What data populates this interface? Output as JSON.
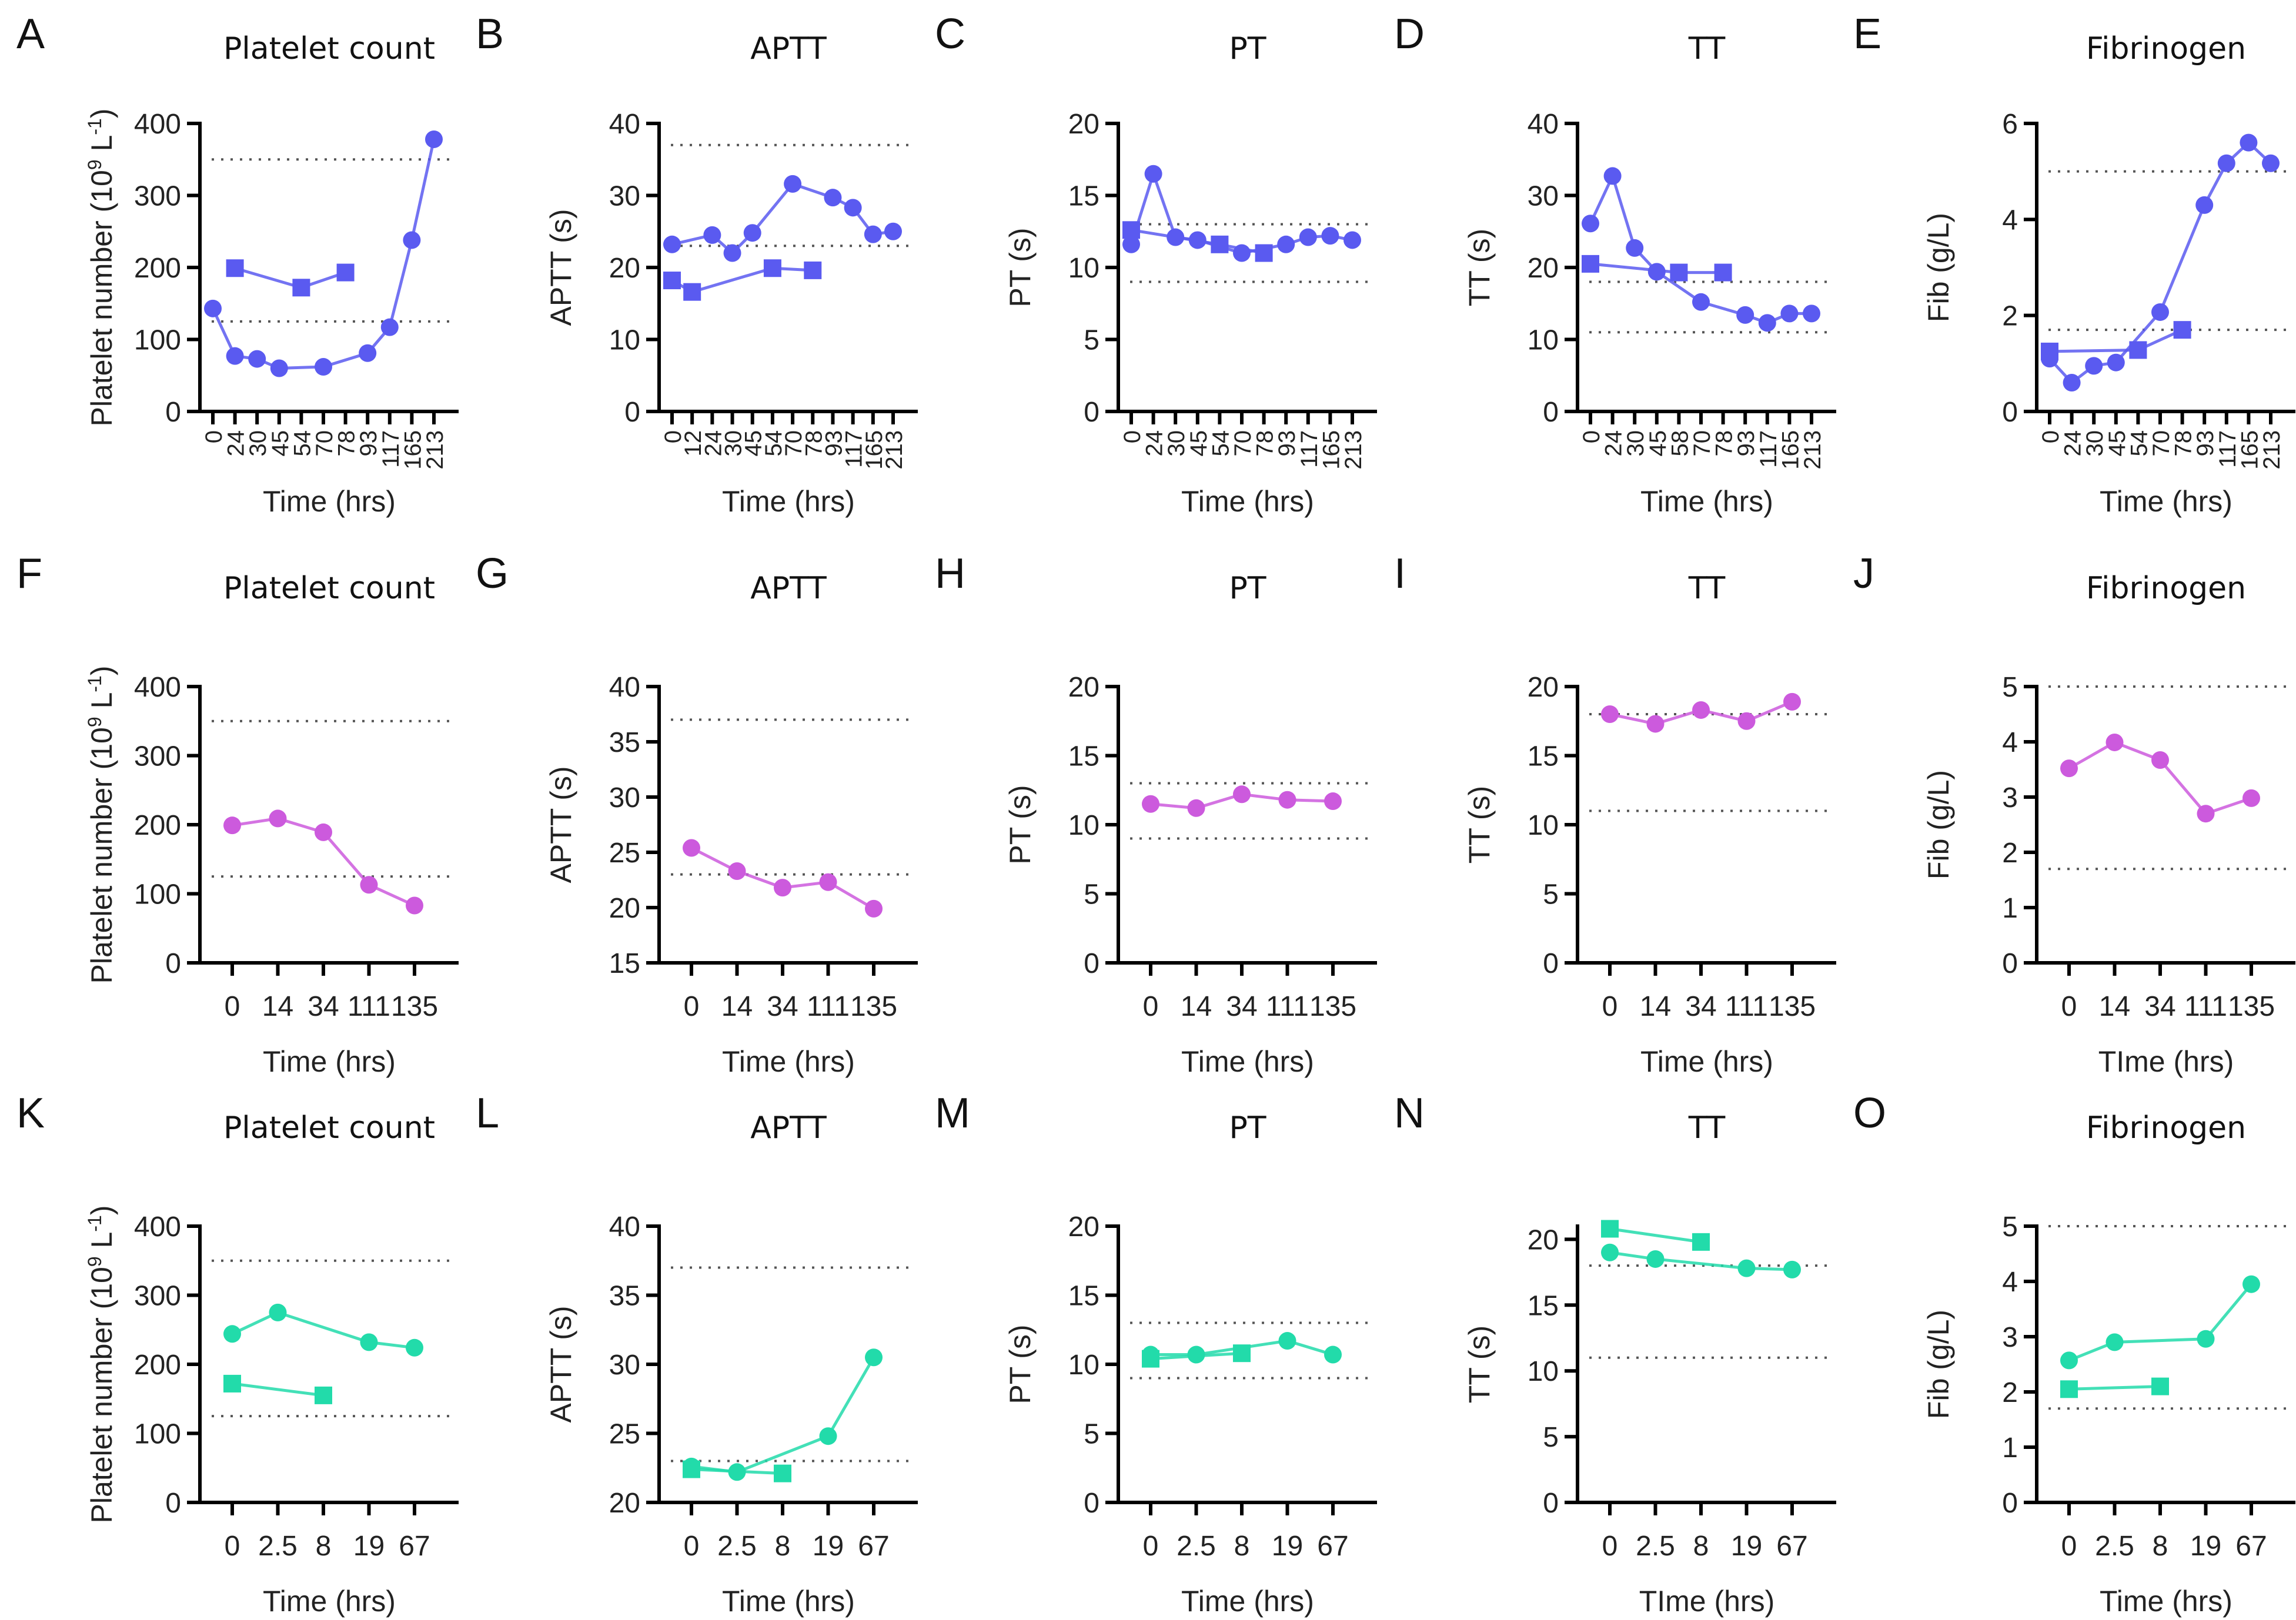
{
  "figure": {
    "colors": {
      "row1": "#5a5af0",
      "row2": "#cc5add",
      "row3": "#22dbaa",
      "axis": "#000000",
      "reference": "#555555"
    }
  },
  "chart_data": [
    {
      "panel": "A",
      "type": "line",
      "title": "Platelet count",
      "xlabel": "Time (hrs)",
      "ylabel": "Platelet number (10^9 L^-1)",
      "ylabel_parts": {
        "base": "Platelet number (10",
        "sup1": "9",
        "mid": " L",
        "sup2": "-1",
        "end": ")"
      },
      "categories": [
        "0",
        "24",
        "30",
        "45",
        "54",
        "70",
        "78",
        "93",
        "117",
        "165",
        "213"
      ],
      "xtick_rotated": true,
      "ylim": [
        0,
        400
      ],
      "yticks": [
        0,
        100,
        200,
        300,
        400
      ],
      "reference_lines": [
        125,
        350
      ],
      "series": [
        {
          "name": "circle series",
          "marker": "circle",
          "values": [
            143,
            77,
            73,
            60,
            null,
            62,
            null,
            81,
            117,
            238,
            378
          ]
        },
        {
          "name": "square series",
          "marker": "square",
          "values": [
            null,
            199,
            null,
            null,
            172,
            null,
            193,
            null,
            null,
            null,
            null
          ]
        }
      ]
    },
    {
      "panel": "B",
      "type": "line",
      "title": "APTT",
      "xlabel": "Time (hrs)",
      "ylabel": "APTT (s)",
      "categories": [
        "0",
        "12",
        "24",
        "30",
        "45",
        "54",
        "70",
        "78",
        "93",
        "117",
        "165",
        "213"
      ],
      "xtick_rotated": true,
      "ylim": [
        0,
        40
      ],
      "yticks": [
        0,
        10,
        20,
        30,
        40
      ],
      "reference_lines": [
        23,
        37
      ],
      "series": [
        {
          "name": "circle series",
          "marker": "circle",
          "values": [
            23.2,
            null,
            24.5,
            22.0,
            24.8,
            null,
            31.6,
            null,
            29.7,
            28.3,
            24.6,
            25.0
          ]
        },
        {
          "name": "square series",
          "marker": "square",
          "values": [
            18.2,
            16.6,
            null,
            null,
            null,
            19.9,
            null,
            19.6,
            null,
            null,
            null,
            null
          ]
        }
      ]
    },
    {
      "panel": "C",
      "type": "line",
      "title": "PT",
      "xlabel": "Time (hrs)",
      "ylabel": "PT (s)",
      "categories": [
        "0",
        "24",
        "30",
        "45",
        "54",
        "70",
        "78",
        "93",
        "117",
        "165",
        "213"
      ],
      "xtick_rotated": true,
      "ylim": [
        0,
        20
      ],
      "yticks": [
        0,
        5,
        10,
        15,
        20
      ],
      "reference_lines": [
        9,
        13
      ],
      "series": [
        {
          "name": "circle series",
          "marker": "circle",
          "values": [
            11.6,
            16.5,
            12.1,
            11.9,
            null,
            11.0,
            null,
            11.6,
            12.1,
            12.2,
            11.9
          ]
        },
        {
          "name": "square series",
          "marker": "square",
          "values": [
            12.6,
            null,
            null,
            null,
            11.6,
            null,
            11.0,
            null,
            null,
            null,
            null
          ]
        }
      ]
    },
    {
      "panel": "D",
      "type": "line",
      "title": "TT",
      "xlabel": "Time (hrs)",
      "ylabel": "TT (s)",
      "categories": [
        "0",
        "24",
        "30",
        "45",
        "58",
        "70",
        "78",
        "93",
        "117",
        "165",
        "213"
      ],
      "xtick_rotated": true,
      "ylim": [
        0,
        40
      ],
      "yticks": [
        0,
        10,
        20,
        30,
        40
      ],
      "reference_lines": [
        11,
        18
      ],
      "series": [
        {
          "name": "circle series",
          "marker": "circle",
          "values": [
            26.1,
            32.7,
            22.7,
            19.4,
            null,
            15.2,
            null,
            13.4,
            12.3,
            13.6,
            13.6
          ]
        },
        {
          "name": "square series",
          "marker": "square",
          "values": [
            20.5,
            null,
            null,
            null,
            19.3,
            null,
            19.3,
            null,
            null,
            null,
            null
          ]
        }
      ]
    },
    {
      "panel": "E",
      "type": "line",
      "title": "Fibrinogen",
      "xlabel": "Time (hrs)",
      "ylabel": "Fib (g/L)",
      "categories": [
        "0",
        "24",
        "30",
        "45",
        "54",
        "70",
        "78",
        "93",
        "117",
        "165",
        "213"
      ],
      "xtick_rotated": true,
      "ylim": [
        0,
        6
      ],
      "yticks": [
        0,
        2,
        4,
        6
      ],
      "reference_lines": [
        1.7,
        5.0
      ],
      "series": [
        {
          "name": "circle series",
          "marker": "circle",
          "values": [
            1.1,
            0.6,
            0.95,
            1.02,
            null,
            2.07,
            null,
            4.3,
            5.17,
            5.6,
            5.17
          ]
        },
        {
          "name": "square series",
          "marker": "square",
          "values": [
            1.25,
            null,
            null,
            null,
            1.28,
            null,
            1.7,
            null,
            null,
            null,
            null
          ]
        }
      ]
    },
    {
      "panel": "F",
      "type": "line",
      "title": "Platelet count",
      "xlabel": "Time (hrs)",
      "ylabel": "Platelet number (10^9 L^-1)",
      "ylabel_parts": {
        "base": "Platelet number (10",
        "sup1": "9",
        "mid": " L",
        "sup2": "-1",
        "end": ")"
      },
      "categories": [
        "0",
        "14",
        "34",
        "111",
        "135"
      ],
      "ylim": [
        0,
        400
      ],
      "yticks": [
        0,
        100,
        200,
        300,
        400
      ],
      "reference_lines": [
        125,
        350
      ],
      "series": [
        {
          "name": "circle series",
          "marker": "circle",
          "values": [
            199,
            209,
            189,
            113,
            83
          ]
        }
      ]
    },
    {
      "panel": "G",
      "type": "line",
      "title": "APTT",
      "xlabel": "Time (hrs)",
      "ylabel": "APTT (s)",
      "categories": [
        "0",
        "14",
        "34",
        "111",
        "135"
      ],
      "ylim": [
        15,
        40
      ],
      "yticks": [
        15,
        20,
        25,
        30,
        35,
        40
      ],
      "reference_lines": [
        23,
        37
      ],
      "series": [
        {
          "name": "circle series",
          "marker": "circle",
          "values": [
            25.4,
            23.3,
            21.8,
            22.3,
            19.9
          ]
        }
      ]
    },
    {
      "panel": "H",
      "type": "line",
      "title": "PT",
      "xlabel": "Time (hrs)",
      "ylabel": "PT (s)",
      "categories": [
        "0",
        "14",
        "34",
        "111",
        "135"
      ],
      "ylim": [
        0,
        20
      ],
      "yticks": [
        0,
        5,
        10,
        15,
        20
      ],
      "reference_lines": [
        9,
        13
      ],
      "series": [
        {
          "name": "circle series",
          "marker": "circle",
          "values": [
            11.5,
            11.2,
            12.2,
            11.8,
            11.7
          ]
        }
      ]
    },
    {
      "panel": "I",
      "type": "line",
      "title": "TT",
      "xlabel": "Time (hrs)",
      "ylabel": "TT (s)",
      "categories": [
        "0",
        "14",
        "34",
        "111",
        "135"
      ],
      "ylim": [
        0,
        20
      ],
      "yticks": [
        0,
        5,
        10,
        15,
        20
      ],
      "reference_lines": [
        11,
        18
      ],
      "series": [
        {
          "name": "circle series",
          "marker": "circle",
          "values": [
            18.0,
            17.3,
            18.3,
            17.5,
            18.9
          ]
        }
      ]
    },
    {
      "panel": "J",
      "type": "line",
      "title": "Fibrinogen",
      "xlabel": "TIme (hrs)",
      "ylabel": "Fib (g/L)",
      "categories": [
        "0",
        "14",
        "34",
        "111",
        "135"
      ],
      "ylim": [
        0,
        5
      ],
      "yticks": [
        0,
        1,
        2,
        3,
        4,
        5
      ],
      "reference_lines": [
        1.7,
        5.0
      ],
      "series": [
        {
          "name": "circle series",
          "marker": "circle",
          "values": [
            3.52,
            3.99,
            3.67,
            2.7,
            2.98
          ]
        }
      ]
    },
    {
      "panel": "K",
      "type": "line",
      "title": "Platelet count",
      "xlabel": "Time (hrs)",
      "ylabel": "Platelet number (10^9 L^-1)",
      "ylabel_parts": {
        "base": "Platelet number (10",
        "sup1": "9",
        "mid": " L",
        "sup2": "-1",
        "end": ")"
      },
      "categories": [
        "0",
        "2.5",
        "8",
        "19",
        "67"
      ],
      "ylim": [
        0,
        400
      ],
      "yticks": [
        0,
        100,
        200,
        300,
        400
      ],
      "reference_lines": [
        125,
        350
      ],
      "series": [
        {
          "name": "circle series",
          "marker": "circle",
          "values": [
            244,
            275,
            null,
            232,
            224
          ]
        },
        {
          "name": "square series",
          "marker": "square",
          "values": [
            172,
            null,
            155,
            null,
            null
          ]
        }
      ]
    },
    {
      "panel": "L",
      "type": "line",
      "title": "APTT",
      "xlabel": "Time (hrs)",
      "ylabel": "APTT (s)",
      "categories": [
        "0",
        "2.5",
        "8",
        "19",
        "67"
      ],
      "ylim": [
        20,
        40
      ],
      "yticks": [
        20,
        25,
        30,
        35,
        40
      ],
      "reference_lines": [
        23,
        37
      ],
      "series": [
        {
          "name": "circle series",
          "marker": "circle",
          "values": [
            22.6,
            22.2,
            null,
            24.8,
            30.5
          ]
        },
        {
          "name": "square series",
          "marker": "square",
          "values": [
            22.4,
            null,
            22.1,
            null,
            null
          ]
        }
      ]
    },
    {
      "panel": "M",
      "type": "line",
      "title": "PT",
      "xlabel": "Time (hrs)",
      "ylabel": "PT (s)",
      "categories": [
        "0",
        "2.5",
        "8",
        "19",
        "67"
      ],
      "ylim": [
        0,
        20
      ],
      "yticks": [
        0,
        5,
        10,
        15,
        20
      ],
      "reference_lines": [
        9,
        13
      ],
      "series": [
        {
          "name": "circle series",
          "marker": "circle",
          "values": [
            10.7,
            10.7,
            null,
            11.7,
            10.7
          ]
        },
        {
          "name": "square series",
          "marker": "square",
          "values": [
            10.4,
            null,
            10.8,
            null,
            null
          ]
        }
      ]
    },
    {
      "panel": "N",
      "type": "line",
      "title": "TT",
      "xlabel": "TIme (hrs)",
      "ylabel": "TT (s)",
      "categories": [
        "0",
        "2.5",
        "8",
        "19",
        "67"
      ],
      "ylim": [
        0,
        21
      ],
      "yticks": [
        0,
        5,
        10,
        15,
        20
      ],
      "reference_lines": [
        11,
        18
      ],
      "series": [
        {
          "name": "circle series",
          "marker": "circle",
          "values": [
            19.0,
            18.5,
            null,
            17.8,
            17.7
          ]
        },
        {
          "name": "square series",
          "marker": "square",
          "values": [
            20.8,
            null,
            19.8,
            null,
            null
          ]
        }
      ]
    },
    {
      "panel": "O",
      "type": "line",
      "title": "Fibrinogen",
      "xlabel": "Time (hrs)",
      "ylabel": "Fib (g/L)",
      "categories": [
        "0",
        "2.5",
        "8",
        "19",
        "67"
      ],
      "ylim": [
        0,
        5
      ],
      "yticks": [
        0,
        1,
        2,
        3,
        4,
        5
      ],
      "reference_lines": [
        1.7,
        5.0
      ],
      "series": [
        {
          "name": "circle series",
          "marker": "circle",
          "values": [
            2.57,
            2.9,
            null,
            2.96,
            3.95
          ]
        },
        {
          "name": "square series",
          "marker": "square",
          "values": [
            2.05,
            null,
            2.1,
            null,
            null
          ]
        }
      ]
    }
  ]
}
